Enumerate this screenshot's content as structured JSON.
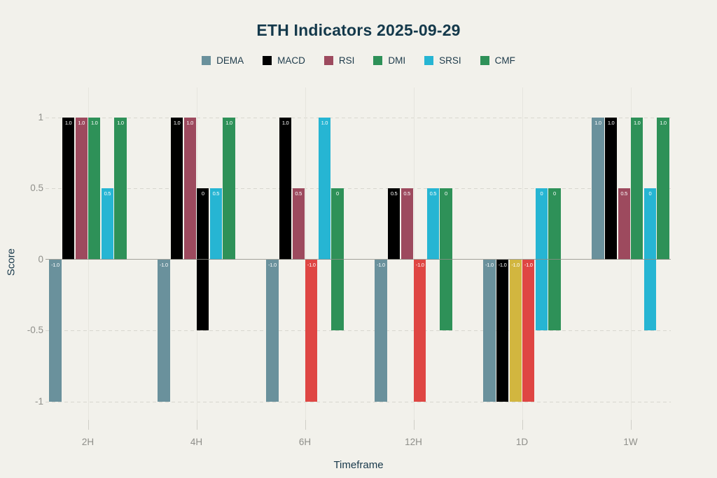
{
  "title": "ETH Indicators 2025-09-29",
  "axes": {
    "y_label": "Score",
    "x_label": "Timeframe"
  },
  "chart_data": {
    "type": "bar",
    "title": "ETH Indicators 2025-09-29",
    "xlabel": "Timeframe",
    "ylabel": "Score",
    "ylim": [
      -1,
      1
    ],
    "y_ticks": [
      "1",
      "0.5",
      "0",
      "-0.5",
      "-1"
    ],
    "y_tick_values": [
      1,
      0.5,
      0,
      -0.5,
      -1
    ],
    "categories": [
      "2H",
      "4H",
      "6H",
      "12H",
      "1D",
      "1W"
    ],
    "legend_position": "top-center",
    "grid": true,
    "zero_value_bar_span": [
      0.5,
      -0.5
    ],
    "series": [
      {
        "name": "DEMA",
        "legend_color": "#6a919c",
        "values": [
          -1,
          -1,
          -1,
          -1,
          -1,
          1
        ],
        "labels": [
          "-1.0",
          "-1.0",
          "-1.0",
          "-1.0",
          "-1.0",
          "1.0"
        ],
        "bar_colors": [
          "#6a919c",
          "#6a919c",
          "#6a919c",
          "#6a919c",
          "#6a919c",
          "#6a919c"
        ]
      },
      {
        "name": "MACD",
        "legend_color": "#000000",
        "values": [
          1,
          1,
          1,
          0.5,
          -1,
          1
        ],
        "labels": [
          "1.0",
          "1.0",
          "1.0",
          "0.5",
          "-1.0",
          "1.0"
        ],
        "bar_colors": [
          "#000000",
          "#000000",
          "#000000",
          "#000000",
          "#000000",
          "#000000"
        ]
      },
      {
        "name": "RSI",
        "legend_color": "#9d4a5e",
        "values": [
          1,
          1,
          0.5,
          0.5,
          -1,
          0.5
        ],
        "labels": [
          "1.0",
          "1.0",
          "0.5",
          "0.5",
          "-1.0",
          "0.5"
        ],
        "bar_colors": [
          "#9d4a5e",
          "#9d4a5e",
          "#9d4a5e",
          "#9d4a5e",
          "#d2b63f",
          "#9d4a5e"
        ]
      },
      {
        "name": "DMI",
        "legend_color": "#2e9158",
        "values": [
          1,
          0,
          -1,
          -1,
          -1,
          1
        ],
        "labels": [
          "1.0",
          "0",
          "-1.0",
          "-1.0",
          "-1.0",
          "1.0"
        ],
        "bar_colors": [
          "#2e9158",
          "#000000",
          "#df4643",
          "#df4643",
          "#df4643",
          "#2e9158"
        ]
      },
      {
        "name": "SRSI",
        "legend_color": "#26b5d3",
        "values": [
          0.5,
          0.5,
          1,
          0.5,
          0,
          0
        ],
        "labels": [
          "0.5",
          "0.5",
          "1.0",
          "0.5",
          "0",
          "0"
        ],
        "bar_colors": [
          "#26b5d3",
          "#26b5d3",
          "#26b5d3",
          "#26b5d3",
          "#26b5d3",
          "#26b5d3"
        ]
      },
      {
        "name": "CMF",
        "legend_color": "#2e9158",
        "values": [
          1,
          1,
          0,
          0,
          0,
          1
        ],
        "labels": [
          "1.0",
          "1.0",
          "0",
          "0",
          "0",
          "1.0"
        ],
        "bar_colors": [
          "#2e9158",
          "#2e9158",
          "#2e9158",
          "#2e9158",
          "#2e9158",
          "#2e9158"
        ]
      }
    ]
  },
  "colors": {
    "background": "#f2f1eb",
    "title_text": "#14394b",
    "axis_title_text": "#17384a",
    "tick_label_text": "#8f8f8a",
    "grid_line": "#d8d7cf",
    "zero_line": "#8e8e87",
    "bar_value_label": "#ffffff"
  }
}
